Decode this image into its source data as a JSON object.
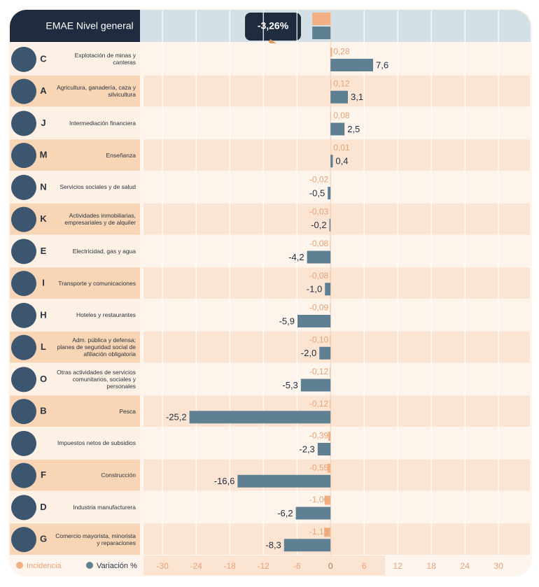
{
  "chart_data": {
    "type": "bar",
    "orientation": "horizontal",
    "title": "EMAE Nivel general",
    "total": {
      "value": -3.26,
      "label": "-3,26%"
    },
    "codes": [
      "C",
      "A",
      "J",
      "M",
      "N",
      "K",
      "E",
      "I",
      "H",
      "L",
      "O",
      "B",
      null,
      "F",
      "D",
      "G"
    ],
    "categories": [
      "Explotación de minas y canteras",
      "Agricultura, ganadería, caza y silvicultura",
      "Intermediación financiera",
      "Enseñanza",
      "Servicios sociales y de salud",
      "Actividades inmobiliarias, empresariales y de alquiler",
      "Electricidad, gas y agua",
      "Transporte y comunicaciones",
      "Hoteles y restaurantes",
      "Adm. pública y defensa; planes de seguridad social de afiliación obligatoria",
      "Otras actividades de servicios comunitarios, sociales y personales",
      "Pesca",
      "Impuestos netos de subsidios",
      "Construcción",
      "Industria manufacturera",
      "Comercio mayorista, minorista y reparaciones"
    ],
    "series": [
      {
        "name": "Incidencia",
        "color": "#f2b084",
        "values": [
          0.28,
          0.12,
          0.08,
          0.01,
          -0.02,
          -0.03,
          -0.08,
          -0.08,
          -0.09,
          -0.1,
          -0.12,
          -0.12,
          -0.39,
          -0.55,
          -1.06,
          -1.13
        ],
        "value_labels": [
          "0,28",
          "0,12",
          "0,08",
          "0,01",
          "-0,02",
          "-0,03",
          "-0,08",
          "-0,08",
          "-0,09",
          "-0,10",
          "-0,12",
          "-0,12",
          "-0,39",
          "-0,55",
          "-1,06",
          "-1,13"
        ]
      },
      {
        "name": "Variación %",
        "color": "#5f7f93",
        "values": [
          7.6,
          3.1,
          2.5,
          0.4,
          -0.5,
          -0.2,
          -4.2,
          -1.0,
          -5.9,
          -2.0,
          -5.3,
          -25.2,
          -2.3,
          -16.6,
          -6.2,
          -8.3
        ],
        "value_labels": [
          "7,6",
          "3,1",
          "2,5",
          "0,4",
          "-0,5",
          "-0,2",
          "-4,2",
          "-1,0",
          "-5,9",
          "-2,0",
          "-5,3",
          "-25,2",
          "-2,3",
          "-16,6",
          "-6,2",
          "-8,3"
        ]
      }
    ],
    "xlim": [
      -33.4,
      34.1
    ],
    "xticks": [
      -30,
      -24,
      -18,
      -12,
      -6,
      0,
      6,
      12,
      18,
      24,
      30
    ],
    "grid": true
  }
}
